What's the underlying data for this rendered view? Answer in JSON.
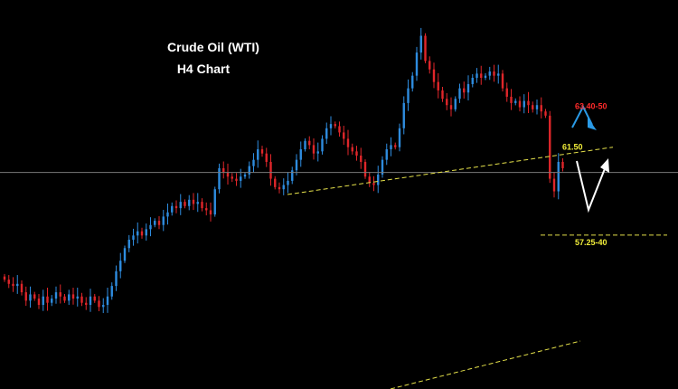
{
  "chart_data": {
    "type": "candlestick",
    "title": "Crude Oil (WTI)",
    "subtitle": "H4 Chart",
    "price_range": [
      50.0,
      68.5
    ],
    "colors": {
      "background": "#000000",
      "bull": "#2e8cdf",
      "bear": "#e0262a",
      "trendline": "#e4e04a",
      "bull_arrow": "#2a9ae6",
      "bear_arrow": "#ffffff",
      "label_yellow": "#f2ee3a",
      "label_red": "#ff2a2a",
      "crosshair": "#7a7a7a"
    },
    "levels": {
      "target_up": {
        "label": "63.40-50",
        "price": 63.45
      },
      "resistance": {
        "label": "61.50",
        "price": 61.5
      },
      "target_down": {
        "label": "57.25-40",
        "price": 57.32
      },
      "current": {
        "price": 60.3
      }
    },
    "closes": [
      55.2,
      55.0,
      54.9,
      55.0,
      54.6,
      54.2,
      54.5,
      54.3,
      54.0,
      54.4,
      54.1,
      54.3,
      54.6,
      54.4,
      54.2,
      54.5,
      54.3,
      54.4,
      54.1,
      54.0,
      54.4,
      54.2,
      53.9,
      54.0,
      54.4,
      54.9,
      55.6,
      56.1,
      56.7,
      57.1,
      57.3,
      57.5,
      57.3,
      57.6,
      57.8,
      58.0,
      57.8,
      58.2,
      58.4,
      58.7,
      58.6,
      58.9,
      58.7,
      59.0,
      58.8,
      58.9,
      58.6,
      58.5,
      58.3,
      59.5,
      60.5,
      60.3,
      60.1,
      60.0,
      59.9,
      60.1,
      60.2,
      60.6,
      60.9,
      61.4,
      61.2,
      60.8,
      60.0,
      59.6,
      59.5,
      59.7,
      59.9,
      60.4,
      60.9,
      61.4,
      61.8,
      61.6,
      61.2,
      61.3,
      61.9,
      62.4,
      62.6,
      62.5,
      62.2,
      61.9,
      61.5,
      61.3,
      61.1,
      60.8,
      60.1,
      59.8,
      59.7,
      60.2,
      60.9,
      61.4,
      61.6,
      61.5,
      62.4,
      63.6,
      64.3,
      64.9,
      66.0,
      66.8,
      65.6,
      65.2,
      64.6,
      64.2,
      63.8,
      63.5,
      63.3,
      63.8,
      64.3,
      64.1,
      64.5,
      64.8,
      65.0,
      64.8,
      64.9,
      65.1,
      64.9,
      65.0,
      64.3,
      63.9,
      63.6,
      63.7,
      63.4,
      63.7,
      63.5,
      63.3,
      63.5,
      63.2,
      63.0,
      60.0,
      59.4,
      60.8,
      60.5
    ]
  }
}
